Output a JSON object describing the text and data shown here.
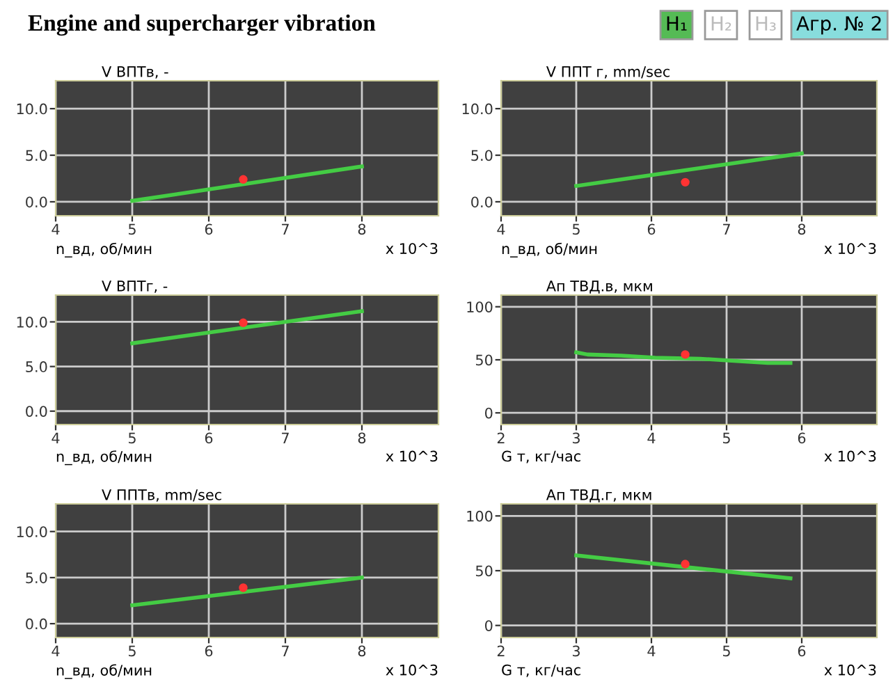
{
  "chart_data": [
    {
      "type": "other",
      "title": "Engine and supercharger vibration",
      "annotations": [
        "H₁",
        "H₂",
        "H₃",
        "Агр. № 2"
      ]
    },
    {
      "type": "line",
      "title": "V ВПТв, -",
      "xlabel": "n_вд, об/мин",
      "annotations": [
        "x 10^3"
      ],
      "xlim": [
        4,
        9
      ],
      "xticks": [
        4,
        5,
        6,
        7,
        8
      ],
      "ylim": [
        -1.5,
        13
      ],
      "yticks": [
        {
          "value": 0,
          "label": "0.0"
        },
        {
          "value": 5,
          "label": "5.0"
        },
        {
          "value": 10,
          "label": "10.0"
        }
      ],
      "grid": true,
      "series": [
        {
          "type": "line",
          "color": "#44cc44",
          "x": [
            5,
            8
          ],
          "values": [
            0.1,
            3.8
          ]
        },
        {
          "type": "scatter",
          "color": "#ff3333",
          "x": [
            6.45
          ],
          "values": [
            2.4
          ]
        }
      ]
    },
    {
      "type": "line",
      "title": "V ППТ г, mm/sec",
      "xlabel": "n_вд, об/мин",
      "annotations": [
        "x 10^3"
      ],
      "xlim": [
        4,
        9
      ],
      "xticks": [
        4,
        5,
        6,
        7,
        8
      ],
      "ylim": [
        -1.5,
        13
      ],
      "yticks": [
        {
          "value": 0,
          "label": "0.0"
        },
        {
          "value": 5,
          "label": "5.0"
        },
        {
          "value": 10,
          "label": "10.0"
        }
      ],
      "grid": true,
      "series": [
        {
          "type": "line",
          "color": "#44cc44",
          "x": [
            5,
            8
          ],
          "values": [
            1.7,
            5.2
          ]
        },
        {
          "type": "scatter",
          "color": "#ff3333",
          "x": [
            6.45
          ],
          "values": [
            2.1
          ]
        }
      ]
    },
    {
      "type": "line",
      "title": "V ВПТг, -",
      "xlabel": "n_вд, об/мин",
      "annotations": [
        "x 10^3"
      ],
      "xlim": [
        4,
        9
      ],
      "xticks": [
        4,
        5,
        6,
        7,
        8
      ],
      "ylim": [
        -1.5,
        13
      ],
      "yticks": [
        {
          "value": 0,
          "label": "0.0"
        },
        {
          "value": 5,
          "label": "5.0"
        },
        {
          "value": 10,
          "label": "10.0"
        }
      ],
      "grid": true,
      "series": [
        {
          "type": "line",
          "color": "#44cc44",
          "x": [
            5,
            8
          ],
          "values": [
            7.6,
            11.2
          ]
        },
        {
          "type": "scatter",
          "color": "#ff3333",
          "x": [
            6.45
          ],
          "values": [
            9.9
          ]
        }
      ]
    },
    {
      "type": "line",
      "title": "Ап ТВД.в, мкм",
      "xlabel": "G т, кг/час",
      "annotations": [
        "x 10^3"
      ],
      "xlim": [
        2,
        7
      ],
      "xticks": [
        2,
        3,
        4,
        5,
        6
      ],
      "ylim": [
        -11,
        111
      ],
      "yticks": [
        0,
        50,
        100
      ],
      "grid": true,
      "series": [
        {
          "type": "line",
          "color": "#44cc44",
          "x": [
            3,
            3.15,
            3.6,
            4.05,
            4.65,
            5.1,
            5.55,
            5.85
          ],
          "values": [
            57,
            55,
            54,
            52,
            51,
            49,
            47,
            47
          ]
        },
        {
          "type": "scatter",
          "color": "#ff3333",
          "x": [
            4.45
          ],
          "values": [
            55
          ]
        }
      ]
    },
    {
      "type": "line",
      "title": "V ППТв, mm/sec",
      "xlabel": "n_вд, об/мин",
      "annotations": [
        "x 10^3"
      ],
      "xlim": [
        4,
        9
      ],
      "xticks": [
        4,
        5,
        6,
        7,
        8
      ],
      "ylim": [
        -1.5,
        13
      ],
      "yticks": [
        {
          "value": 0,
          "label": "0.0"
        },
        {
          "value": 5,
          "label": "5.0"
        },
        {
          "value": 10,
          "label": "10.0"
        }
      ],
      "grid": true,
      "series": [
        {
          "type": "line",
          "color": "#44cc44",
          "x": [
            5,
            8
          ],
          "values": [
            2.0,
            5.0
          ]
        },
        {
          "type": "scatter",
          "color": "#ff3333",
          "x": [
            6.45
          ],
          "values": [
            3.9
          ]
        }
      ]
    },
    {
      "type": "line",
      "title": "Ап ТВД.г, мкм",
      "xlabel": "G т, кг/час",
      "annotations": [
        "x 10^3"
      ],
      "xlim": [
        2,
        7
      ],
      "xticks": [
        2,
        3,
        4,
        5,
        6
      ],
      "ylim": [
        -11,
        111
      ],
      "yticks": [
        0,
        50,
        100
      ],
      "grid": true,
      "series": [
        {
          "type": "line",
          "color": "#44cc44",
          "x": [
            3,
            5.85
          ],
          "values": [
            64,
            43
          ]
        },
        {
          "type": "scatter",
          "color": "#ff3333",
          "x": [
            4.45
          ],
          "values": [
            56
          ]
        }
      ]
    }
  ]
}
